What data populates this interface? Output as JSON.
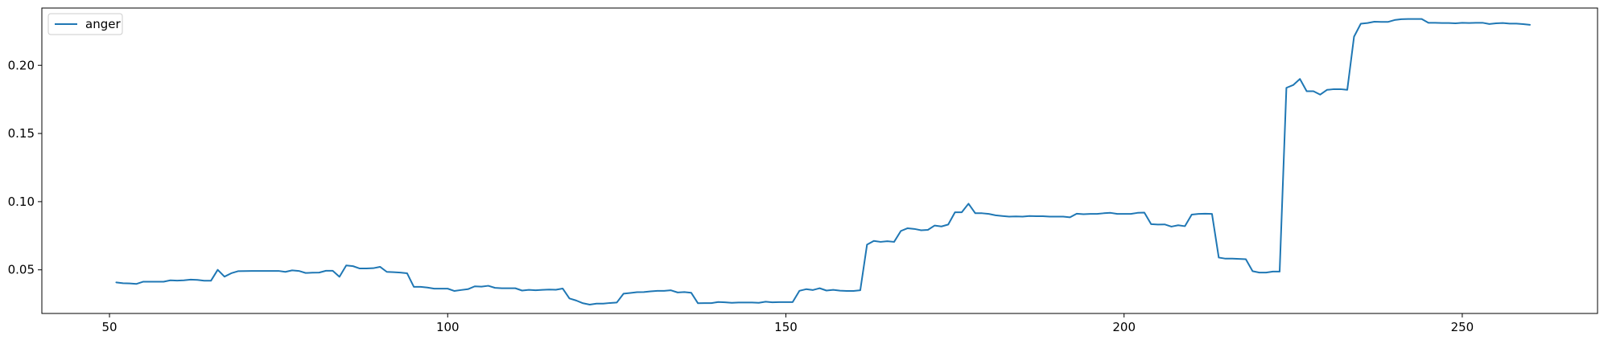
{
  "chart_data": {
    "type": "line",
    "title": "",
    "xlabel": "",
    "ylabel": "",
    "xlim": [
      40,
      270
    ],
    "ylim": [
      0.018,
      0.242
    ],
    "xticks": [
      50,
      100,
      150,
      200,
      250
    ],
    "yticks": [
      0.05,
      0.1,
      0.15,
      0.2
    ],
    "xtick_labels": [
      "50",
      "100",
      "150",
      "200",
      "250"
    ],
    "ytick_labels": [
      "0.05",
      "0.10",
      "0.15",
      "0.20"
    ],
    "grid": false,
    "legend_position": "top-left",
    "series": [
      {
        "name": "anger",
        "color": "#1f77b4",
        "x": [
          51,
          52,
          53,
          54,
          55,
          56,
          57,
          58,
          59,
          60,
          61,
          62,
          63,
          64,
          65,
          66,
          67,
          68,
          69,
          70,
          71,
          72,
          73,
          74,
          75,
          76,
          77,
          78,
          79,
          80,
          81,
          82,
          83,
          84,
          85,
          86,
          87,
          88,
          89,
          90,
          91,
          92,
          93,
          94,
          95,
          96,
          97,
          98,
          99,
          100,
          101,
          102,
          103,
          104,
          105,
          106,
          107,
          108,
          109,
          110,
          111,
          112,
          113,
          114,
          115,
          116,
          117,
          118,
          119,
          120,
          121,
          122,
          123,
          124,
          125,
          126,
          127,
          128,
          129,
          130,
          131,
          132,
          133,
          134,
          135,
          136,
          137,
          138,
          139,
          140,
          141,
          142,
          143,
          144,
          145,
          146,
          147,
          148,
          149,
          150,
          151,
          152,
          153,
          154,
          155,
          156,
          157,
          158,
          159,
          160,
          161,
          162,
          163,
          164,
          165,
          166,
          167,
          168,
          169,
          170,
          171,
          172,
          173,
          174,
          175,
          176,
          177,
          178,
          179,
          180,
          181,
          182,
          183,
          184,
          185,
          186,
          187,
          188,
          189,
          190,
          191,
          192,
          193,
          194,
          195,
          196,
          197,
          198,
          199,
          200,
          201,
          202,
          203,
          204,
          205,
          206,
          207,
          208,
          209,
          210,
          211,
          212,
          213,
          214,
          215,
          216,
          217,
          218,
          219,
          220,
          221,
          222,
          223,
          224,
          225,
          226,
          227,
          228,
          229,
          230,
          231,
          232,
          233,
          234,
          235,
          236,
          237,
          238,
          239,
          240,
          241,
          242,
          243,
          244,
          245,
          246,
          247,
          248,
          249,
          250,
          251,
          252,
          253,
          254,
          255,
          256,
          257,
          258,
          259,
          260
        ],
        "y": [
          0.0408,
          0.0402,
          0.04,
          0.0397,
          0.0413,
          0.0413,
          0.0413,
          0.0413,
          0.0423,
          0.0421,
          0.0423,
          0.0428,
          0.0426,
          0.042,
          0.042,
          0.05,
          0.045,
          0.0475,
          0.049,
          0.0491,
          0.0492,
          0.0492,
          0.0492,
          0.0492,
          0.0492,
          0.0485,
          0.0496,
          0.0492,
          0.0477,
          0.0479,
          0.048,
          0.0493,
          0.0493,
          0.0449,
          0.0532,
          0.0527,
          0.051,
          0.051,
          0.0512,
          0.0522,
          0.0485,
          0.0483,
          0.048,
          0.0475,
          0.0375,
          0.0375,
          0.037,
          0.0362,
          0.0362,
          0.0362,
          0.0345,
          0.0352,
          0.0358,
          0.0379,
          0.0377,
          0.0383,
          0.0368,
          0.0365,
          0.0365,
          0.0365,
          0.0348,
          0.0353,
          0.035,
          0.0353,
          0.0355,
          0.0354,
          0.0363,
          0.029,
          0.0275,
          0.0255,
          0.0245,
          0.0252,
          0.0252,
          0.0257,
          0.026,
          0.0325,
          0.033,
          0.0336,
          0.0337,
          0.0342,
          0.0346,
          0.0346,
          0.035,
          0.0334,
          0.0337,
          0.0332,
          0.0255,
          0.0256,
          0.0256,
          0.0264,
          0.0262,
          0.0258,
          0.026,
          0.026,
          0.026,
          0.0258,
          0.0266,
          0.0262,
          0.0263,
          0.0263,
          0.0263,
          0.0346,
          0.0358,
          0.0352,
          0.0365,
          0.0348,
          0.0353,
          0.0347,
          0.0345,
          0.0345,
          0.035,
          0.0685,
          0.0712,
          0.0705,
          0.071,
          0.0705,
          0.0785,
          0.0805,
          0.08,
          0.079,
          0.0793,
          0.0825,
          0.0818,
          0.0832,
          0.0922,
          0.0922,
          0.0985,
          0.0915,
          0.0915,
          0.091,
          0.09,
          0.0895,
          0.089,
          0.0892,
          0.089,
          0.0895,
          0.0893,
          0.0893,
          0.089,
          0.089,
          0.089,
          0.0885,
          0.0912,
          0.0908,
          0.091,
          0.091,
          0.0915,
          0.0918,
          0.091,
          0.091,
          0.091,
          0.0918,
          0.092,
          0.0835,
          0.0832,
          0.0833,
          0.0817,
          0.0827,
          0.082,
          0.0905,
          0.091,
          0.0912,
          0.091,
          0.059,
          0.0582,
          0.0582,
          0.058,
          0.0578,
          0.049,
          0.048,
          0.048,
          0.0487,
          0.0487,
          0.1835,
          0.1855,
          0.19,
          0.181,
          0.181,
          0.1785,
          0.182,
          0.1825,
          0.1825,
          0.182,
          0.221,
          0.2305,
          0.231,
          0.232,
          0.2318,
          0.2318,
          0.2332,
          0.2338,
          0.234,
          0.234,
          0.234,
          0.2312,
          0.2312,
          0.231,
          0.231,
          0.2308,
          0.2312,
          0.231,
          0.2312,
          0.2312,
          0.2303,
          0.2308,
          0.231,
          0.2306,
          0.2306,
          0.2302,
          0.2297
        ]
      }
    ]
  }
}
